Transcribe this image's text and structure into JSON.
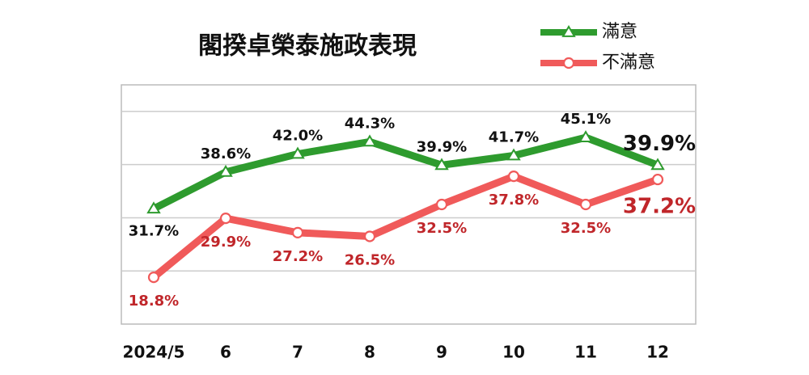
{
  "chart_data": {
    "type": "line",
    "title": "閣揆卓榮泰施政表現",
    "categories": [
      "2024/5",
      "6",
      "7",
      "8",
      "9",
      "10",
      "11",
      "12"
    ],
    "series": [
      {
        "name": "滿意",
        "color": "#2e9b2e",
        "label_color": "#111111",
        "marker": "triangle",
        "values": [
          31.7,
          38.6,
          42.0,
          44.3,
          39.9,
          41.7,
          45.1,
          39.9
        ],
        "value_labels": [
          "31.7%",
          "38.6%",
          "42.0%",
          "44.3%",
          "39.9%",
          "41.7%",
          "45.1%",
          "39.9%"
        ]
      },
      {
        "name": "不滿意",
        "color": "#f05a5a",
        "label_color": "#c0262a",
        "marker": "circle",
        "values": [
          18.8,
          29.9,
          27.2,
          26.5,
          32.5,
          37.8,
          32.5,
          37.2
        ],
        "value_labels": [
          "18.8%",
          "29.9%",
          "27.2%",
          "26.5%",
          "32.5%",
          "37.8%",
          "32.5%",
          "37.2%"
        ]
      }
    ],
    "ylim": [
      10,
      55
    ],
    "yticks": [
      20,
      30,
      40,
      50
    ],
    "grid": true
  }
}
